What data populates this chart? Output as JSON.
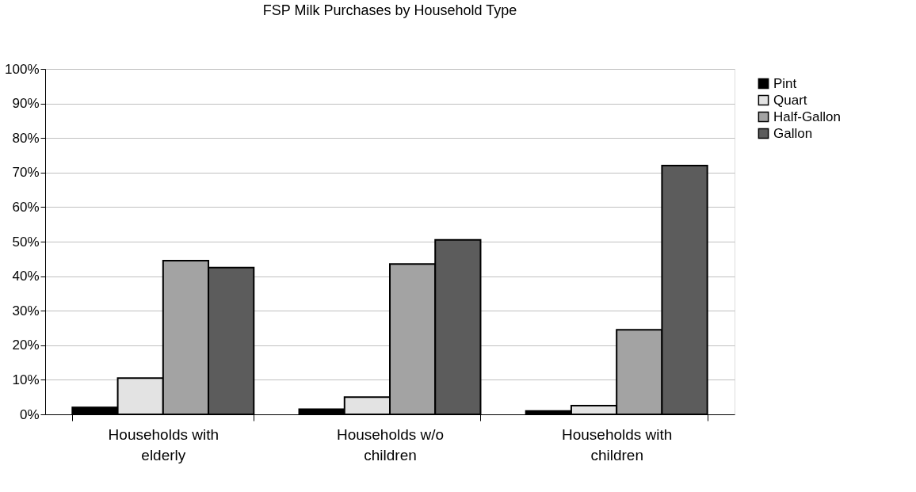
{
  "chart_data": {
    "type": "bar",
    "title": "FSP Milk Purchases by Household Type",
    "categories": [
      "Households with elderly",
      "Households w/o children",
      "Households with children"
    ],
    "series": [
      {
        "name": "Pint",
        "color": "#000000",
        "values": [
          2,
          1.5,
          1
        ]
      },
      {
        "name": "Quart",
        "color": "#e3e3e3",
        "values": [
          10.5,
          5,
          2.5
        ]
      },
      {
        "name": "Half-Gallon",
        "color": "#a3a3a3",
        "values": [
          44.5,
          43.5,
          24.5
        ]
      },
      {
        "name": "Gallon",
        "color": "#5c5c5c",
        "values": [
          42.5,
          50.5,
          72
        ]
      }
    ],
    "ylim": [
      0,
      100
    ],
    "yticks": [
      {
        "value": 0,
        "label": "0%"
      },
      {
        "value": 10,
        "label": "10%"
      },
      {
        "value": 20,
        "label": "20%"
      },
      {
        "value": 30,
        "label": "30%"
      },
      {
        "value": 40,
        "label": "40%"
      },
      {
        "value": 50,
        "label": "50%"
      },
      {
        "value": 60,
        "label": "60%"
      },
      {
        "value": 70,
        "label": "70%"
      },
      {
        "value": 80,
        "label": "80%"
      },
      {
        "value": 90,
        "label": "90%"
      },
      {
        "value": 100,
        "label": "100%"
      }
    ],
    "grid": "y",
    "legend": "right"
  }
}
